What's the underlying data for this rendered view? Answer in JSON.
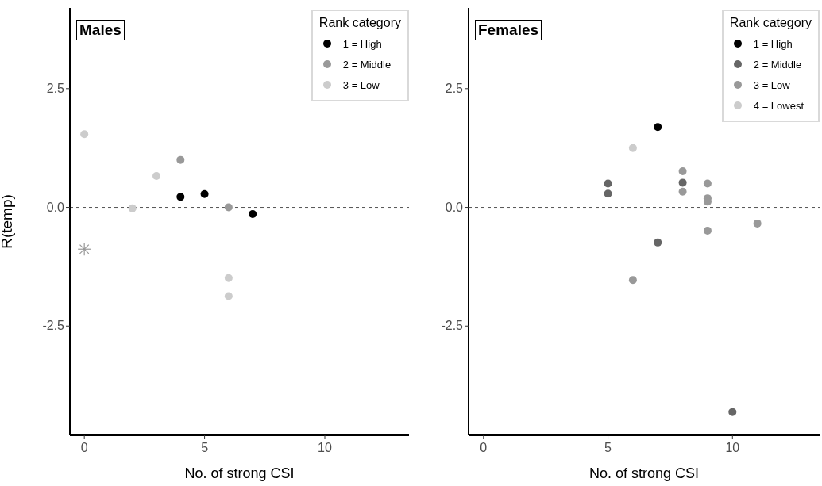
{
  "chart_data": [
    {
      "type": "scatter",
      "title": "Males",
      "xlabel": "No. of strong CSI",
      "ylabel": "R(temp)",
      "legend_title": "Rank category",
      "legend": "top right",
      "grid": false,
      "marker": "circle",
      "xlim": [
        -0.6,
        13.5
      ],
      "xticks": [
        0,
        5,
        10
      ],
      "ylim": [
        -4.8,
        4.2
      ],
      "yticks": [
        {
          "value": -2.5,
          "label": "-2.5"
        },
        {
          "value": 0,
          "label": "0.0"
        },
        {
          "value": 2.5,
          "label": "2.5"
        }
      ],
      "ref_lines": [
        {
          "axis": "y",
          "value": 0,
          "line_style": "dashed",
          "color": "#555555"
        }
      ],
      "series": [
        {
          "name": "1 = High",
          "color": "#000000",
          "x": [
            4,
            5,
            7
          ],
          "values": [
            0.22,
            0.28,
            -0.14
          ]
        },
        {
          "name": "2 = Middle",
          "color": "#999999",
          "x": [
            4,
            6
          ],
          "values": [
            1.0,
            0.0
          ]
        },
        {
          "name": "3 = Low",
          "color": "#cccccc",
          "x": [
            0,
            2,
            3,
            6,
            6
          ],
          "values": [
            1.54,
            -0.02,
            0.66,
            -1.49,
            -1.87
          ]
        },
        {
          "color": "#999999",
          "marker": "cross",
          "x": [
            0
          ],
          "values": [
            -0.88
          ]
        }
      ]
    },
    {
      "type": "scatter",
      "title": "Females",
      "xlabel": "No. of strong CSI",
      "legend_title": "Rank category",
      "legend": "top right",
      "grid": false,
      "marker": "circle",
      "xlim": [
        -0.6,
        13.5
      ],
      "xticks": [
        0,
        5,
        10
      ],
      "ylim": [
        -4.8,
        4.2
      ],
      "yticks": [
        {
          "value": -2.5,
          "label": "-2.5"
        },
        {
          "value": 0,
          "label": "0.0"
        },
        {
          "value": 2.5,
          "label": "2.5"
        }
      ],
      "ref_lines": [
        {
          "axis": "y",
          "value": 0,
          "line_style": "dashed",
          "color": "#555555"
        }
      ],
      "series": [
        {
          "name": "1 = High",
          "color": "#000000",
          "x": [
            7
          ],
          "values": [
            1.69
          ]
        },
        {
          "name": "2 = Middle",
          "color": "#666666",
          "x": [
            5,
            8,
            5,
            7,
            10
          ],
          "values": [
            0.5,
            0.52,
            0.29,
            -0.74,
            -4.31
          ]
        },
        {
          "name": "3 = Low",
          "color": "#999999",
          "x": [
            8,
            9,
            8,
            9,
            9,
            11,
            9,
            6
          ],
          "values": [
            0.76,
            0.5,
            0.33,
            0.19,
            0.12,
            -0.34,
            -0.49,
            -1.53
          ]
        },
        {
          "name": "4 = Lowest",
          "color": "#cccccc",
          "x": [
            6
          ],
          "values": [
            1.25
          ]
        }
      ]
    }
  ]
}
